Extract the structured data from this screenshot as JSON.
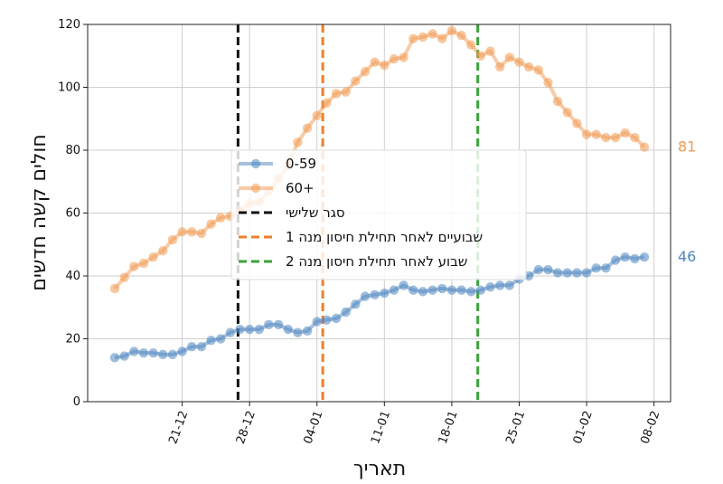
{
  "chart_data": {
    "type": "line",
    "xlabel": "תאריך",
    "ylabel": "חולים קשה חדשים",
    "ylim": [
      0,
      120
    ],
    "y_ticks": [
      0,
      20,
      40,
      60,
      80,
      100,
      120
    ],
    "x_ticks": [
      "21-12",
      "28-12",
      "04-01",
      "11-01",
      "18-01",
      "25-01",
      "01-02",
      "08-02"
    ],
    "grid": true,
    "legend_position": "center-left",
    "series": [
      {
        "name": "0-59",
        "color": "#4f86c0",
        "end_label": "46",
        "values": [
          14,
          14.5,
          16,
          15.5,
          15.5,
          15,
          15,
          16,
          17.5,
          17.5,
          19.5,
          20,
          22,
          23,
          23,
          23,
          24.5,
          24.5,
          23,
          22,
          22.5,
          25.5,
          26,
          26.5,
          28.5,
          31,
          33.5,
          34,
          34.5,
          35.5,
          37,
          35.5,
          35,
          35.5,
          36,
          35.5,
          35.5,
          35,
          35.5,
          36.5,
          37,
          37,
          39,
          40,
          42,
          42,
          41,
          41,
          41,
          41,
          42.5,
          42.5,
          45,
          46,
          45.5,
          46
        ]
      },
      {
        "name": "60+",
        "color": "#f19a52",
        "end_label": "81",
        "values": [
          36,
          39.5,
          43,
          44,
          46,
          48,
          51.5,
          54,
          54,
          53.5,
          56.5,
          58.5,
          59,
          61,
          63,
          63.5,
          67,
          71,
          75,
          82.5,
          87,
          91,
          95,
          98,
          98.5,
          102,
          105,
          108,
          107,
          109,
          109.5,
          115.5,
          116,
          117,
          115.5,
          118,
          116.5,
          113.5,
          110,
          111.5,
          106.5,
          109.5,
          108,
          106.5,
          105.5,
          101.5,
          95.5,
          92,
          88.5,
          85,
          85,
          84,
          84,
          85.5,
          84,
          81
        ]
      }
    ],
    "vlines": [
      {
        "label": "סגר שלישי",
        "x_index": 12.8,
        "color": "#111111"
      },
      {
        "label": "שבועיים לאחר תחילת חיסון מנה 1",
        "x_index": 21.6,
        "color": "#ee7f2d"
      },
      {
        "label": "שבוע לאחר תחילת חיסון מנה 2",
        "x_index": 37.7,
        "color": "#3aa23a"
      }
    ]
  }
}
